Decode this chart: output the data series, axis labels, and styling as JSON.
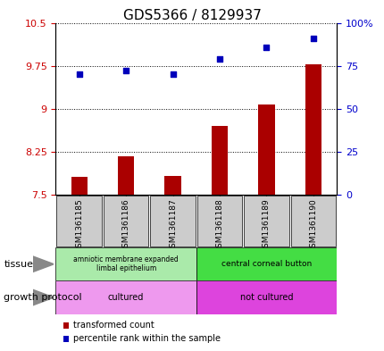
{
  "title": "GDS5366 / 8129937",
  "samples": [
    "GSM1361185",
    "GSM1361186",
    "GSM1361187",
    "GSM1361188",
    "GSM1361189",
    "GSM1361190"
  ],
  "bar_values": [
    7.82,
    8.17,
    7.83,
    8.7,
    9.08,
    9.77
  ],
  "percentile_values": [
    70,
    72,
    70,
    79,
    86,
    91
  ],
  "ylim_left": [
    7.5,
    10.5
  ],
  "ylim_right": [
    0,
    100
  ],
  "yticks_left": [
    7.5,
    8.25,
    9.0,
    9.75,
    10.5
  ],
  "ytick_labels_left": [
    "7.5",
    "8.25",
    "9",
    "9.75",
    "10.5"
  ],
  "yticks_right": [
    0,
    25,
    50,
    75,
    100
  ],
  "ytick_labels_right": [
    "0",
    "25",
    "50",
    "75",
    "100%"
  ],
  "bar_color": "#aa0000",
  "dot_color": "#0000bb",
  "bar_bottom": 7.5,
  "tissue_labels": [
    "amniotic membrane expanded\nlimbal epithelium",
    "central corneal button"
  ],
  "tissue_colors": [
    "#aaeaaa",
    "#44dd44"
  ],
  "protocol_labels": [
    "cultured",
    "not cultured"
  ],
  "protocol_colors": [
    "#ee99ee",
    "#dd44dd"
  ],
  "left_label_tissue": "tissue",
  "left_label_protocol": "growth protocol",
  "legend_items": [
    {
      "label": "transformed count",
      "color": "#aa0000"
    },
    {
      "label": "percentile rank within the sample",
      "color": "#0000bb"
    }
  ],
  "sample_bg_color": "#cccccc",
  "title_fontsize": 11,
  "tick_fontsize": 8,
  "sample_fontsize": 6.5,
  "annotation_fontsize": 7,
  "label_fontsize": 8
}
